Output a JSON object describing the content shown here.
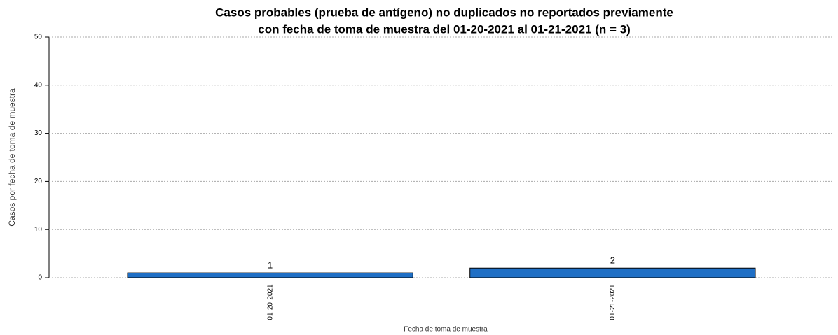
{
  "chart_data": {
    "type": "bar",
    "title": [
      "Casos probables (prueba de antígeno) no duplicados no reportados previamente",
      "con fecha de toma de muestra del 01-20-2021 al 01-21-2021 (n = 3)"
    ],
    "x_label": "Fecha de toma de muestra",
    "y_label": "Casos por fecha de toma de muestra",
    "categories": [
      "01-20-2021",
      "01-21-2021"
    ],
    "values": [
      1,
      2
    ],
    "color": "#1f6fc5",
    "ylim": [
      0,
      50
    ],
    "yticks": [
      0,
      10,
      20,
      30,
      40,
      50
    ],
    "grid": true
  }
}
